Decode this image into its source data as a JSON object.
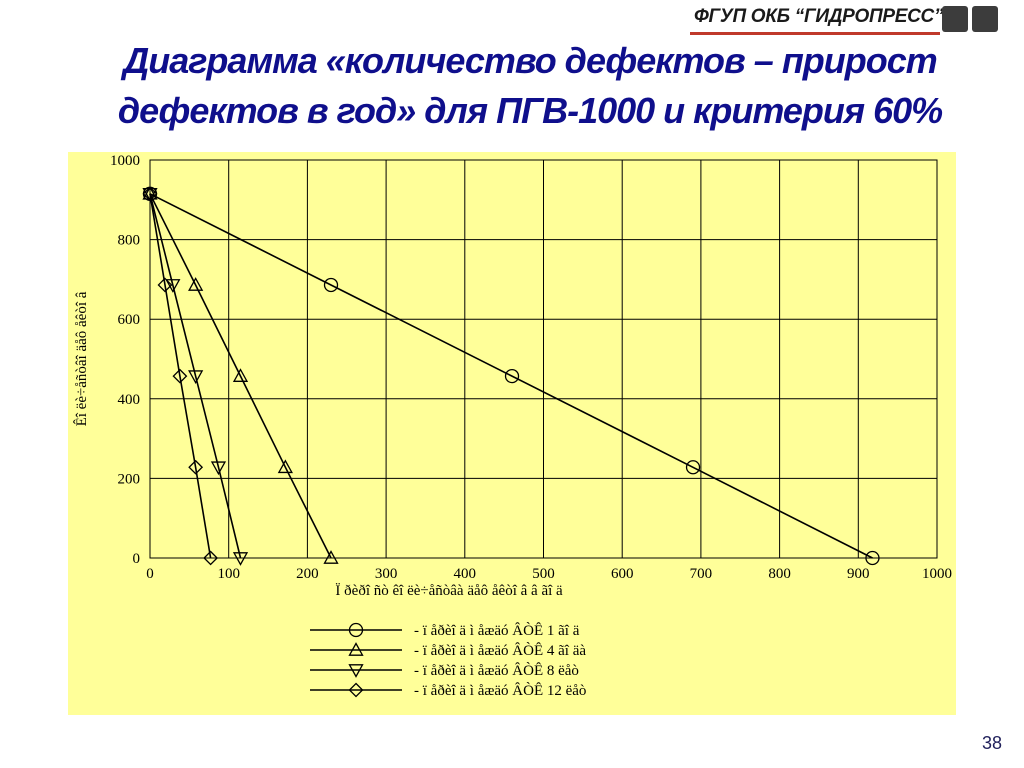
{
  "logo": {
    "text": "ФГУП ОКБ “ГИДРОПРЕСС”"
  },
  "title": {
    "line1": "Диаграмма «количество дефектов – прирост",
    "line2": "дефектов в год» для ПГВ-1000 и критерия 60%"
  },
  "page_number": "38",
  "colors": {
    "title": "#0f0f8c",
    "panel_bg": "#ffff99",
    "line": "#000000",
    "accent": "#c0392b"
  },
  "chart_data": {
    "type": "line",
    "xlabel": "Ï ðèðî ñò êî ëè÷åñòâà äåô åêòî â â ãî ä",
    "ylabel": "Êî ëè÷åñòâî  äåô åêòî â",
    "xlim": [
      0,
      1000
    ],
    "ylim": [
      0,
      1000
    ],
    "xticks": [
      0,
      100,
      200,
      300,
      400,
      500,
      600,
      700,
      800,
      900,
      1000
    ],
    "yticks": [
      0,
      200,
      400,
      600,
      800,
      1000
    ],
    "grid": true,
    "legend_position": "bottom-center",
    "series": [
      {
        "name": "- ï åðèî ä ì åæäó ÂÒÊ 1 ãî ä",
        "marker": "circle",
        "points": [
          [
            0,
            915
          ],
          [
            230,
            686
          ],
          [
            460,
            457
          ],
          [
            690,
            228
          ],
          [
            918,
            0
          ]
        ]
      },
      {
        "name": "- ï åðèî ä ì åæäó ÂÒÊ 4 ãî äà",
        "marker": "triangle-up",
        "points": [
          [
            0,
            915
          ],
          [
            58,
            686
          ],
          [
            115,
            457
          ],
          [
            172,
            228
          ],
          [
            230,
            0
          ]
        ]
      },
      {
        "name": "- ï åðèî ä ì åæäó ÂÒÊ 8 ëåò",
        "marker": "triangle-down",
        "points": [
          [
            0,
            915
          ],
          [
            29,
            686
          ],
          [
            58,
            457
          ],
          [
            87,
            228
          ],
          [
            115,
            0
          ]
        ]
      },
      {
        "name": "- ï åðèî ä ì åæäó ÂÒÊ 12 ëåò",
        "marker": "diamond",
        "points": [
          [
            0,
            915
          ],
          [
            19,
            686
          ],
          [
            38,
            457
          ],
          [
            58,
            228
          ],
          [
            77,
            0
          ]
        ]
      }
    ]
  }
}
